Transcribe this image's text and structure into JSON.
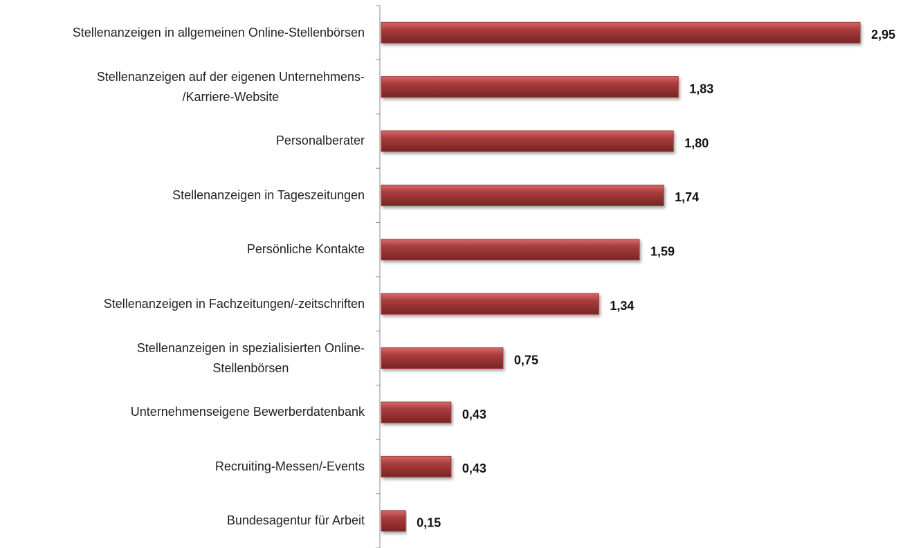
{
  "chart_data": {
    "type": "bar",
    "orientation": "horizontal",
    "categories": [
      "Stellenanzeigen in allgemeinen Online-Stellenbörsen",
      "Stellenanzeigen auf der eigenen Unternehmens-\n/Karriere-Website",
      "Personalberater",
      "Stellenanzeigen in Tageszeitungen",
      "Persönliche Kontakte",
      "Stellenanzeigen in Fachzeitungen/-zeitschriften",
      "Stellenanzeigen in spezialisierten Online-\nStellenbörsen",
      "Unternehmenseigene Bewerberdatenbank",
      "Recruiting-Messen/-Events",
      "Bundesagentur für Arbeit"
    ],
    "values": [
      2.95,
      1.83,
      1.8,
      1.74,
      1.59,
      1.34,
      0.75,
      0.43,
      0.43,
      0.15
    ],
    "value_labels": [
      "2,95",
      "1,83",
      "1,80",
      "1,74",
      "1,59",
      "1,34",
      "0,75",
      "0,43",
      "0,43",
      "0,15"
    ],
    "color": "#a33b3b"
  }
}
